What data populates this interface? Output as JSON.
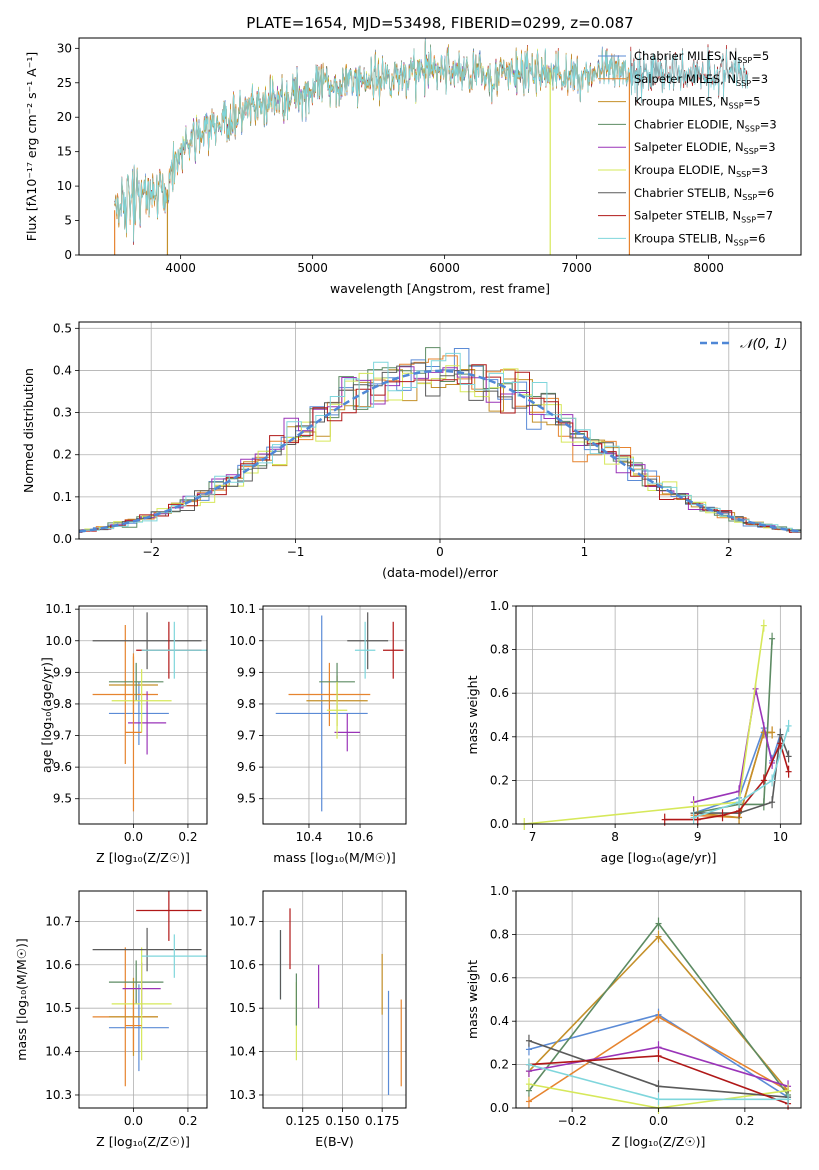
{
  "figure_title": "PLATE=1654, MJD=53498, FIBERID=0299, z=0.087",
  "colors": {
    "Chabrier MILES": "#5b8bd6",
    "Salpeter MILES": "#e6842f",
    "Kroupa MILES": "#c4902a",
    "Chabrier ELODIE": "#5d8b63",
    "Salpeter ELODIE": "#9a34b8",
    "Kroupa ELODIE": "#d6e85a",
    "Chabrier STELIB": "#5a5a5a",
    "Salpeter STELIB": "#b01818",
    "Kroupa STELIB": "#7fd6dc",
    "Normal": "#4f87d6"
  },
  "chart_data": [
    {
      "type": "line",
      "id": "spectrum",
      "title": "PLATE=1654, MJD=53498, FIBERID=0299, z=0.087",
      "xlabel": "wavelength [Angstrom, rest frame]",
      "ylabel": "Flux [fλ10⁻¹⁷ erg cm⁻² s⁻¹ A⁻¹]",
      "xlim": [
        3230,
        8700
      ],
      "ylim": [
        0,
        31.5
      ],
      "xticks": [
        4000,
        5000,
        6000,
        7000,
        8000
      ],
      "yticks": [
        0,
        5,
        10,
        15,
        20,
        25,
        30
      ],
      "grid": false,
      "legend_position": "upper-right",
      "continuum_x": [
        3500,
        3700,
        3900,
        3950,
        4050,
        4200,
        4400,
        4600,
        4800,
        5000,
        5200,
        5400,
        5600,
        5800,
        6000,
        6200,
        6400,
        6600,
        6800,
        7000,
        7200,
        7400
      ],
      "continuum_y": [
        6.5,
        8.5,
        9.5,
        13.5,
        16,
        18,
        20,
        21.5,
        23,
        24,
        25,
        25.5,
        26,
        26.5,
        27,
        26.5,
        26,
        26.5,
        26.5,
        26,
        26.5,
        26.5
      ],
      "series": [
        {
          "name": "Chabrier MILES",
          "nssp": "5"
        },
        {
          "name": "Salpeter MILES",
          "nssp": "3"
        },
        {
          "name": "Kroupa MILES",
          "nssp": "5"
        },
        {
          "name": "Chabrier ELODIE",
          "nssp": "3"
        },
        {
          "name": "Salpeter ELODIE",
          "nssp": "3"
        },
        {
          "name": "Kroupa ELODIE",
          "nssp": "3"
        },
        {
          "name": "Chabrier STELIB",
          "nssp": "6"
        },
        {
          "name": "Salpeter STELIB",
          "nssp": "7"
        },
        {
          "name": "Kroupa STELIB",
          "nssp": "6"
        }
      ]
    },
    {
      "type": "histogram",
      "id": "residuals",
      "xlabel": "(data-model)/error",
      "ylabel": "Normed distribution",
      "xlim": [
        -2.5,
        2.5
      ],
      "ylim": [
        0,
        0.515
      ],
      "xticks": [
        -2,
        -1,
        0,
        1,
        2
      ],
      "yticks": [
        0.0,
        0.1,
        0.2,
        0.3,
        0.4,
        0.5
      ],
      "grid": true,
      "legend": "𝒩(0, 1)",
      "legend_position": "upper-right",
      "bin_width": 0.1
    },
    {
      "type": "scatter",
      "id": "age-vs-Z",
      "xlabel": "Z [log₁₀(Z/Z☉)]",
      "ylabel": "age  [log₁₀(age/yr)]",
      "xlim": [
        -0.2,
        0.27
      ],
      "ylim": [
        9.42,
        10.11
      ],
      "xticks": [
        0.0,
        0.2
      ],
      "yticks": [
        9.5,
        9.6,
        9.7,
        9.8,
        9.9,
        10.0,
        10.1
      ],
      "points": [
        {
          "series": "Chabrier MILES",
          "x": 0.02,
          "y": 9.77,
          "xerr": 0.11,
          "yerr": 0.1
        },
        {
          "series": "Salpeter MILES",
          "x": -0.03,
          "y": 9.83,
          "xerr": 0.12,
          "yerr": 0.22
        },
        {
          "series": "Kroupa MILES",
          "x": 0.0,
          "y": 9.86,
          "xerr": 0.09,
          "yerr": 0.09
        },
        {
          "series": "Chabrier ELODIE",
          "x": 0.01,
          "y": 9.87,
          "xerr": 0.1,
          "yerr": 0.06
        },
        {
          "series": "Salpeter ELODIE",
          "x": 0.05,
          "y": 9.74,
          "xerr": 0.07,
          "yerr": 0.1
        },
        {
          "series": "Kroupa ELODIE",
          "x": 0.03,
          "y": 9.81,
          "xerr": 0.11,
          "yerr": 0.1
        },
        {
          "series": "Chabrier STELIB",
          "x": 0.05,
          "y": 10.0,
          "xerr": 0.2,
          "yerr": 0.09
        },
        {
          "series": "Salpeter STELIB",
          "x": 0.13,
          "y": 9.97,
          "xerr": 0.12,
          "yerr": 0.09
        },
        {
          "series": "Kroupa STELIB",
          "x": 0.15,
          "y": 9.97,
          "xerr": 0.12,
          "yerr": 0.09
        },
        {
          "series": "Salpeter MILES",
          "x": 0.0,
          "y": 9.71,
          "xerr": 0.03,
          "yerr": 0.25
        }
      ]
    },
    {
      "type": "scatter",
      "id": "age-vs-mass",
      "xlabel": "mass [log₁₀(M/M☉)]",
      "ylabel": "",
      "xlim": [
        10.22,
        10.78
      ],
      "ylim": [
        9.42,
        10.11
      ],
      "xticks": [
        10.4,
        10.6
      ],
      "yticks": [
        9.5,
        9.6,
        9.7,
        9.8,
        9.9,
        10.0,
        10.1
      ],
      "points": [
        {
          "series": "Chabrier MILES",
          "x": 10.45,
          "y": 9.77,
          "xerr": 0.18,
          "yerr": 0.31
        },
        {
          "series": "Salpeter MILES",
          "x": 10.48,
          "y": 9.83,
          "xerr": 0.16,
          "yerr": 0.1
        },
        {
          "series": "Kroupa MILES",
          "x": 10.51,
          "y": 9.81,
          "xerr": 0.12,
          "yerr": 0.08
        },
        {
          "series": "Chabrier ELODIE",
          "x": 10.51,
          "y": 9.87,
          "xerr": 0.07,
          "yerr": 0.06
        },
        {
          "series": "Salpeter ELODIE",
          "x": 10.55,
          "y": 9.71,
          "xerr": 0.05,
          "yerr": 0.06
        },
        {
          "series": "Kroupa ELODIE",
          "x": 10.51,
          "y": 9.78,
          "xerr": 0.04,
          "yerr": 0.09
        },
        {
          "series": "Chabrier STELIB",
          "x": 10.63,
          "y": 10.0,
          "xerr": 0.08,
          "yerr": 0.09
        },
        {
          "series": "Salpeter STELIB",
          "x": 10.73,
          "y": 9.97,
          "xerr": 0.04,
          "yerr": 0.09
        },
        {
          "series": "Kroupa STELIB",
          "x": 10.62,
          "y": 9.97,
          "xerr": 0.04,
          "yerr": 0.09
        }
      ]
    },
    {
      "type": "line",
      "id": "mass-weight-vs-age",
      "xlabel": "age  [log₁₀(age/yr)]",
      "ylabel": "mass weight",
      "xlim": [
        6.8,
        10.25
      ],
      "ylim": [
        0,
        1.0
      ],
      "xticks": [
        7,
        8,
        9,
        10
      ],
      "yticks": [
        0.0,
        0.2,
        0.4,
        0.6,
        0.8,
        1.0
      ],
      "grid": true,
      "series": [
        {
          "name": "Chabrier MILES",
          "x": [
            8.95,
            9.5,
            9.8,
            9.9,
            10.0
          ],
          "y": [
            0.05,
            0.12,
            0.44,
            0.29,
            0.41
          ]
        },
        {
          "name": "Salpeter MILES",
          "x": [
            8.95,
            9.5,
            9.8,
            9.9
          ],
          "y": [
            0.04,
            0.03,
            0.42,
            0.42
          ]
        },
        {
          "name": "Kroupa MILES",
          "x": [
            9.0,
            9.5,
            9.8,
            9.9
          ],
          "y": [
            0.05,
            0.03,
            0.42,
            0.42
          ]
        },
        {
          "name": "Chabrier ELODIE",
          "x": [
            8.95,
            9.5,
            9.8,
            9.9
          ],
          "y": [
            0.05,
            0.09,
            0.09,
            0.85
          ]
        },
        {
          "name": "Salpeter ELODIE",
          "x": [
            8.95,
            9.5,
            9.7,
            9.9
          ],
          "y": [
            0.1,
            0.15,
            0.62,
            0.28
          ]
        },
        {
          "name": "Kroupa ELODIE",
          "x": [
            6.9,
            8.95,
            9.5,
            9.8
          ],
          "y": [
            0.0,
            0.08,
            0.1,
            0.91
          ]
        },
        {
          "name": "Chabrier STELIB",
          "x": [
            8.95,
            9.5,
            9.9,
            10.0,
            10.1
          ],
          "y": [
            0.05,
            0.05,
            0.1,
            0.41,
            0.31
          ]
        },
        {
          "name": "Salpeter STELIB",
          "x": [
            8.6,
            9.0,
            9.3,
            9.5,
            9.8,
            10.0,
            10.1
          ],
          "y": [
            0.02,
            0.02,
            0.04,
            0.06,
            0.2,
            0.37,
            0.24
          ]
        },
        {
          "name": "Kroupa STELIB",
          "x": [
            8.95,
            9.5,
            9.9,
            10.1
          ],
          "y": [
            0.03,
            0.1,
            0.2,
            0.45
          ]
        }
      ]
    },
    {
      "type": "scatter",
      "id": "mass-vs-Z",
      "xlabel": "Z [log₁₀(Z/Z☉)]",
      "ylabel": "mass [log₁₀(M/M☉)]",
      "xlim": [
        -0.2,
        0.27
      ],
      "ylim": [
        10.27,
        10.77
      ],
      "xticks": [
        0.0,
        0.2
      ],
      "yticks": [
        10.3,
        10.4,
        10.5,
        10.6,
        10.7
      ],
      "points": [
        {
          "series": "Chabrier MILES",
          "x": 0.02,
          "y": 10.455,
          "xerr": 0.11,
          "yerr": 0.1
        },
        {
          "series": "Salpeter MILES",
          "x": -0.03,
          "y": 10.48,
          "xerr": 0.12,
          "yerr": 0.16
        },
        {
          "series": "Kroupa MILES",
          "x": 0.0,
          "y": 10.48,
          "xerr": 0.09,
          "yerr": 0.09
        },
        {
          "series": "Chabrier ELODIE",
          "x": 0.01,
          "y": 10.56,
          "xerr": 0.1,
          "yerr": 0.05
        },
        {
          "series": "Salpeter ELODIE",
          "x": 0.03,
          "y": 10.545,
          "xerr": 0.07,
          "yerr": 0.06
        },
        {
          "series": "Kroupa ELODIE",
          "x": 0.03,
          "y": 10.51,
          "xerr": 0.11,
          "yerr": 0.13
        },
        {
          "series": "Chabrier STELIB",
          "x": 0.05,
          "y": 10.635,
          "xerr": 0.2,
          "yerr": 0.05
        },
        {
          "series": "Salpeter STELIB",
          "x": 0.13,
          "y": 10.725,
          "xerr": 0.12,
          "yerr": 0.07
        },
        {
          "series": "Kroupa STELIB",
          "x": 0.15,
          "y": 10.62,
          "xerr": 0.12,
          "yerr": 0.05
        },
        {
          "series": "Salpeter MILES",
          "x": 0.0,
          "y": 10.46,
          "xerr": 0.03,
          "yerr": 0.06
        }
      ]
    },
    {
      "type": "scatter",
      "id": "mass-vs-ebv",
      "xlabel": "E(B-V)",
      "ylabel": "",
      "xlim": [
        0.1,
        0.19
      ],
      "ylim": [
        10.27,
        10.77
      ],
      "xticks": [
        0.125,
        0.15,
        0.175
      ],
      "yticks": [
        10.3,
        10.4,
        10.5,
        10.6,
        10.7
      ],
      "points": [
        {
          "series": "Kroupa STELIB",
          "x": 0.111,
          "y": 10.6,
          "xerr": 0,
          "yerr": 0.08
        },
        {
          "series": "Chabrier STELIB",
          "x": 0.111,
          "y": 10.6,
          "xerr": 0,
          "yerr": 0.08
        },
        {
          "series": "Salpeter STELIB",
          "x": 0.117,
          "y": 10.66,
          "xerr": 0,
          "yerr": 0.07
        },
        {
          "series": "Kroupa ELODIE",
          "x": 0.121,
          "y": 10.47,
          "xerr": 0,
          "yerr": 0.09
        },
        {
          "series": "Chabrier ELODIE",
          "x": 0.121,
          "y": 10.52,
          "xerr": 0,
          "yerr": 0.06
        },
        {
          "series": "Salpeter ELODIE",
          "x": 0.135,
          "y": 10.55,
          "xerr": 0,
          "yerr": 0.05
        },
        {
          "series": "Kroupa MILES",
          "x": 0.175,
          "y": 10.555,
          "xerr": 0,
          "yerr": 0.07
        },
        {
          "series": "Chabrier MILES",
          "x": 0.179,
          "y": 10.42,
          "xerr": 0,
          "yerr": 0.12
        },
        {
          "series": "Salpeter MILES",
          "x": 0.187,
          "y": 10.42,
          "xerr": 0,
          "yerr": 0.1
        }
      ]
    },
    {
      "type": "line",
      "id": "mass-weight-vs-Z",
      "xlabel": "Z [log₁₀(Z/Z☉)]",
      "ylabel": "mass weight",
      "xlim": [
        -0.33,
        0.33
      ],
      "ylim": [
        0,
        1.0
      ],
      "xticks": [
        -0.2,
        0.0,
        0.2
      ],
      "yticks": [
        0.0,
        0.2,
        0.4,
        0.6,
        0.8,
        1.0
      ],
      "grid": true,
      "series": [
        {
          "name": "Chabrier MILES",
          "x": [
            -0.3,
            0.0,
            0.3
          ],
          "y": [
            0.27,
            0.43,
            0.05
          ]
        },
        {
          "name": "Salpeter MILES",
          "x": [
            -0.3,
            0.0,
            0.3
          ],
          "y": [
            0.03,
            0.42,
            0.08
          ]
        },
        {
          "name": "Kroupa MILES",
          "x": [
            -0.3,
            0.0,
            0.3
          ],
          "y": [
            0.17,
            0.79,
            0.08
          ]
        },
        {
          "name": "Chabrier ELODIE",
          "x": [
            -0.3,
            0.0,
            0.3
          ],
          "y": [
            0.08,
            0.85,
            0.06
          ]
        },
        {
          "name": "Salpeter ELODIE",
          "x": [
            -0.3,
            0.0,
            0.3
          ],
          "y": [
            0.17,
            0.28,
            0.1
          ]
        },
        {
          "name": "Kroupa ELODIE",
          "x": [
            -0.3,
            0.0,
            0.3
          ],
          "y": [
            0.11,
            0.0,
            0.08
          ]
        },
        {
          "name": "Chabrier STELIB",
          "x": [
            -0.3,
            0.0,
            0.3
          ],
          "y": [
            0.31,
            0.1,
            0.05
          ]
        },
        {
          "name": "Salpeter STELIB",
          "x": [
            -0.3,
            0.0,
            0.3
          ],
          "y": [
            0.2,
            0.24,
            0.02
          ]
        },
        {
          "name": "Kroupa STELIB",
          "x": [
            -0.3,
            0.0,
            0.3
          ],
          "y": [
            0.2,
            0.04,
            0.04
          ]
        }
      ]
    }
  ]
}
